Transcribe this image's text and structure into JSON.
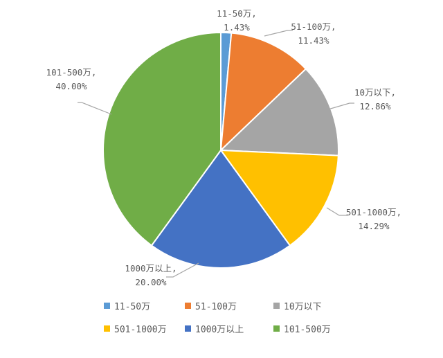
{
  "chart_data": {
    "type": "pie",
    "title": "",
    "series": [
      {
        "label": "11-50万",
        "value": 1.43,
        "value_label": "1.43%",
        "color": "#5b9bd5"
      },
      {
        "label": "51-100万",
        "value": 11.43,
        "value_label": "11.43%",
        "color": "#ed7d31"
      },
      {
        "label": "10万以下",
        "value": 12.86,
        "value_label": "12.86%",
        "color": "#a5a5a5"
      },
      {
        "label": "501-1000万",
        "value": 14.29,
        "value_label": "14.29%",
        "color": "#ffc000"
      },
      {
        "label": "1000万以上",
        "value": 20.0,
        "value_label": "20.00%",
        "color": "#4472c4"
      },
      {
        "label": "101-500万",
        "value": 40.0,
        "value_label": "40.00%",
        "color": "#70ad47"
      }
    ],
    "data_labels": "category and percentage, outside with leader lines",
    "start_angle": "12 o'clock, clockwise",
    "legend_position": "bottom"
  }
}
